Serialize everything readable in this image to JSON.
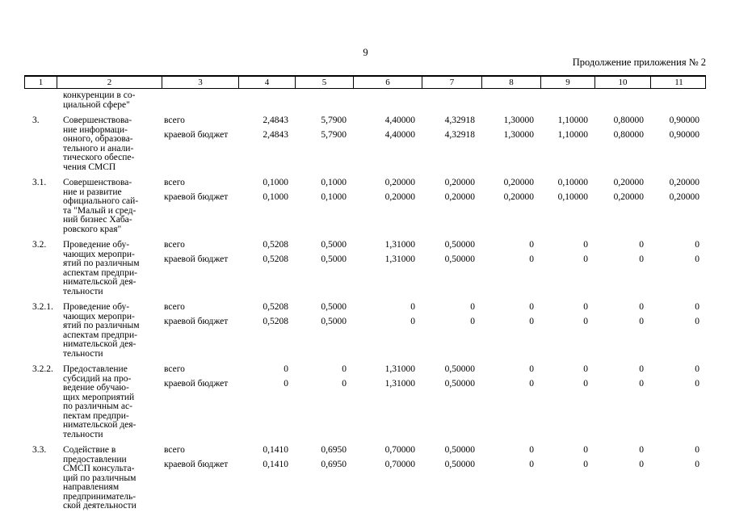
{
  "page": {
    "number": "9",
    "continuation_note": "Продолжение приложения № 2"
  },
  "table": {
    "header_columns": [
      "1",
      "2",
      "3",
      "4",
      "5",
      "6",
      "7",
      "8",
      "9",
      "10",
      "11"
    ],
    "carryover_text": "конкуренции в со-\nциальной сфере\"",
    "sections": [
      {
        "num": "3.",
        "title": "Совершенствова-\nние информаци-\nонного, образова-\nтельного и анали-\nтического обеспе-\nчения СМСП",
        "rows": [
          {
            "label": "всего",
            "values": [
              "2,4843",
              "5,7900",
              "4,40000",
              "4,32918",
              "1,30000",
              "1,10000",
              "0,80000",
              "0,90000"
            ]
          },
          {
            "label": "краевой бюджет",
            "values": [
              "2,4843",
              "5,7900",
              "4,40000",
              "4,32918",
              "1,30000",
              "1,10000",
              "0,80000",
              "0,90000"
            ]
          }
        ]
      },
      {
        "num": "3.1.",
        "title": "Совершенствова-\nние и развитие\nофициального сай-\nта \"Малый и сред-\nний бизнес Хаба-\nровского края\"",
        "rows": [
          {
            "label": "всего",
            "values": [
              "0,1000",
              "0,1000",
              "0,20000",
              "0,20000",
              "0,20000",
              "0,10000",
              "0,20000",
              "0,20000"
            ]
          },
          {
            "label": "краевой бюджет",
            "values": [
              "0,1000",
              "0,1000",
              "0,20000",
              "0,20000",
              "0,20000",
              "0,10000",
              "0,20000",
              "0,20000"
            ]
          }
        ]
      },
      {
        "num": "3.2.",
        "title": "Проведение обу-\nчающих меропри-\nятий по различным\nаспектам предпри-\nнимательской дея-\nтельности",
        "rows": [
          {
            "label": "всего",
            "values": [
              "0,5208",
              "0,5000",
              "1,31000",
              "0,50000",
              "0",
              "0",
              "0",
              "0"
            ]
          },
          {
            "label": "краевой бюджет",
            "values": [
              "0,5208",
              "0,5000",
              "1,31000",
              "0,50000",
              "0",
              "0",
              "0",
              "0"
            ]
          }
        ]
      },
      {
        "num": "3.2.1.",
        "title": "Проведение обу-\nчающих меропри-\nятий по различным\nаспектам предпри-\nнимательской дея-\nтельности",
        "rows": [
          {
            "label": "всего",
            "values": [
              "0,5208",
              "0,5000",
              "0",
              "0",
              "0",
              "0",
              "0",
              "0"
            ]
          },
          {
            "label": "краевой бюджет",
            "values": [
              "0,5208",
              "0,5000",
              "0",
              "0",
              "0",
              "0",
              "0",
              "0"
            ]
          }
        ]
      },
      {
        "num": "3.2.2.",
        "title": "Предоставление\nсубсидий на про-\nведение обучаю-\nщих мероприятий\nпо различным ас-\nпектам предпри-\nнимательской дея-\nтельности",
        "rows": [
          {
            "label": "всего",
            "values": [
              "0",
              "0",
              "1,31000",
              "0,50000",
              "0",
              "0",
              "0",
              "0"
            ]
          },
          {
            "label": "краевой бюджет",
            "values": [
              "0",
              "0",
              "1,31000",
              "0,50000",
              "0",
              "0",
              "0",
              "0"
            ]
          }
        ]
      },
      {
        "num": "3.3.",
        "title": "Содействие в\nпредоставлении\nСМСП консульта-\nций по различным\nнаправлениям\nпредприниматель-\nской деятельности",
        "rows": [
          {
            "label": "всего",
            "values": [
              "0,1410",
              "0,6950",
              "0,70000",
              "0,50000",
              "0",
              "0",
              "0",
              "0"
            ]
          },
          {
            "label": "краевой бюджет",
            "values": [
              "0,1410",
              "0,6950",
              "0,70000",
              "0,50000",
              "0",
              "0",
              "0",
              "0"
            ]
          }
        ]
      }
    ]
  }
}
